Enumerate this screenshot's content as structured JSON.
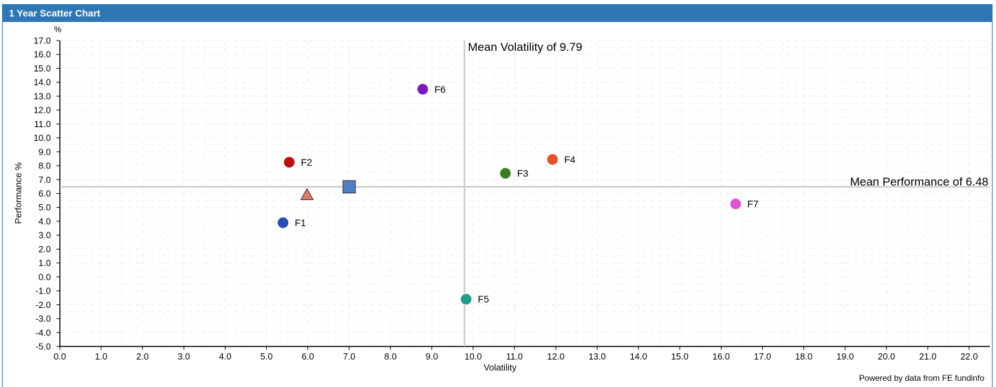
{
  "panel": {
    "title": "1 Year Scatter Chart"
  },
  "footer": {
    "credit": "Powered by data from FE fundinfo"
  },
  "chart_data": {
    "type": "scatter",
    "title": "1 Year Scatter Chart",
    "xlabel": "Volatility",
    "ylabel": "Performance %",
    "yunit": "%",
    "xlim": [
      0,
      22.5
    ],
    "ylim": [
      -5,
      17
    ],
    "xticks": [
      0,
      1,
      2,
      3,
      4,
      5,
      6,
      7,
      8,
      9,
      10,
      11,
      12,
      13,
      14,
      15,
      16,
      17,
      18,
      19,
      20,
      21,
      22
    ],
    "yticks": [
      -5,
      -4,
      -3,
      -2,
      -1,
      0,
      1,
      2,
      3,
      4,
      5,
      6,
      7,
      8,
      9,
      10,
      11,
      12,
      13,
      14,
      15,
      16,
      17
    ],
    "grid": true,
    "mean_lines": {
      "volatility": {
        "value": 9.79,
        "label": "Mean Volatility of 9.79"
      },
      "performance": {
        "value": 6.48,
        "label": "Mean Performance of 6.48"
      }
    },
    "points": [
      {
        "label": "F1",
        "x": 5.4,
        "y": 3.9,
        "color": "#2a4fb3",
        "shape": "circle"
      },
      {
        "label": "F2",
        "x": 5.55,
        "y": 8.25,
        "color": "#c00d0d",
        "shape": "circle"
      },
      {
        "label": "F3",
        "x": 10.78,
        "y": 7.45,
        "color": "#3a7d1c",
        "shape": "circle"
      },
      {
        "label": "F4",
        "x": 11.92,
        "y": 8.45,
        "color": "#e4512a",
        "shape": "circle"
      },
      {
        "label": "F5",
        "x": 9.83,
        "y": -1.6,
        "color": "#239c8a",
        "shape": "circle"
      },
      {
        "label": "F6",
        "x": 8.78,
        "y": 13.5,
        "color": "#7a18c2",
        "shape": "circle"
      },
      {
        "label": "F7",
        "x": 16.35,
        "y": 5.25,
        "color": "#e052d6",
        "shape": "circle"
      },
      {
        "label": "",
        "x": 5.98,
        "y": 5.9,
        "color": "#e07b6a",
        "shape": "triangle"
      },
      {
        "label": "",
        "x": 7.0,
        "y": 6.48,
        "color": "#4f7fc3",
        "shape": "square"
      }
    ]
  }
}
